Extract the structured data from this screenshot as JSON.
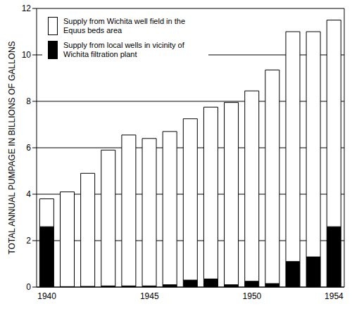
{
  "chart_data": {
    "type": "bar",
    "stacked": true,
    "grid": true,
    "legend": "upper left",
    "y_label": "TOTAL ANNUAL PUMPAGE IN BILLIONS OF GALLONS",
    "categories": [
      "1940",
      null,
      null,
      null,
      null,
      "1945",
      null,
      null,
      null,
      null,
      "1950",
      null,
      null,
      null,
      "1954"
    ],
    "series": [
      {
        "name": "Supply from Wichita well field in the Equus beds area",
        "color": "#ffffff",
        "values": [
          1.2,
          4.08,
          4.87,
          5.85,
          6.5,
          6.35,
          6.6,
          6.95,
          7.4,
          7.85,
          8.2,
          9.2,
          9.9,
          9.7,
          8.9
        ]
      },
      {
        "name": "Supply from local wells in vicinity of Wichita filtration plant",
        "color": "#000000",
        "values": [
          2.6,
          0.02,
          0.03,
          0.05,
          0.05,
          0.05,
          0.1,
          0.3,
          0.35,
          0.1,
          0.25,
          0.15,
          1.1,
          1.3,
          2.6
        ]
      }
    ],
    "ylim": [
      0,
      12
    ],
    "yticks": [
      0,
      2,
      4,
      6,
      8,
      10,
      12
    ]
  }
}
